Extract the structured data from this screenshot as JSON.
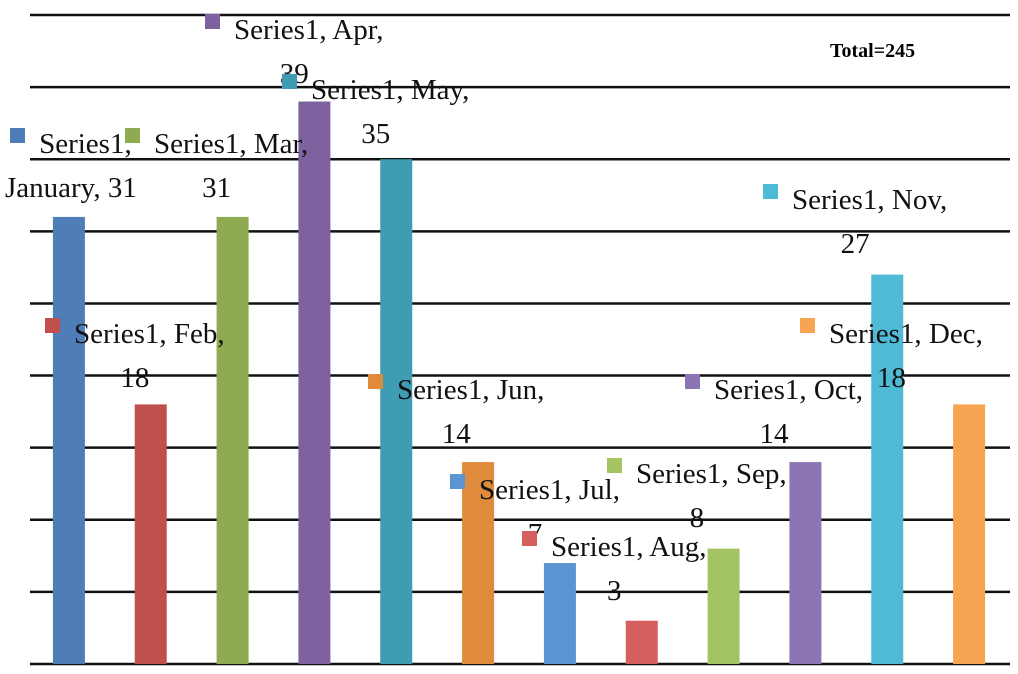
{
  "chart_data": {
    "type": "bar",
    "annotation": "Total=245",
    "categories": [
      "January",
      "Feb",
      "Mar",
      "Apr",
      "May",
      "Jun",
      "Jul",
      "Aug",
      "Sep",
      "Oct",
      "Nov",
      "Dec"
    ],
    "series": [
      {
        "name": "Series1",
        "colors": [
          "#4f7db8",
          "#c0504d",
          "#8fab52",
          "#7e62a0",
          "#3e9cb3",
          "#e08a3c",
          "#5b94d2",
          "#d45f5c",
          "#a4c463",
          "#8d75b5",
          "#4fbad5",
          "#f7a552"
        ],
        "values": [
          31,
          18,
          31,
          39,
          35,
          14,
          7,
          3,
          8,
          14,
          27,
          18
        ]
      }
    ],
    "ylim": [
      0,
      45
    ],
    "yticks": [
      0,
      5,
      10,
      15,
      20,
      25,
      30,
      35,
      40,
      45
    ],
    "grid": true
  }
}
